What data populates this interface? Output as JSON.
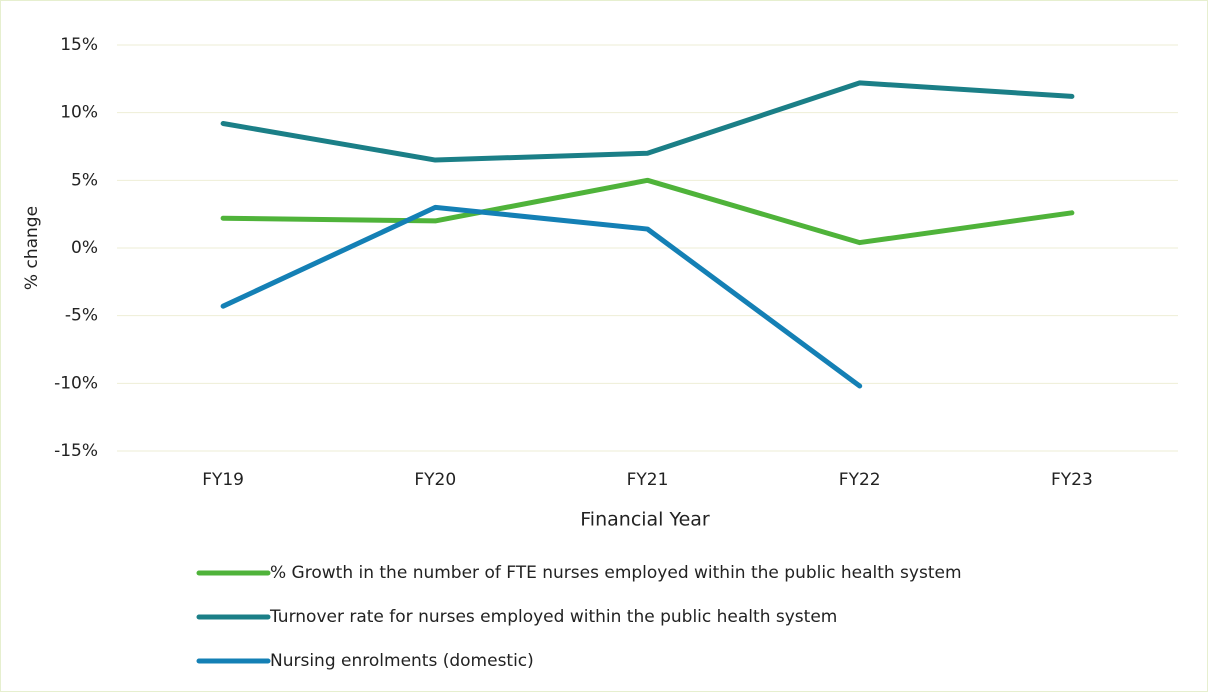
{
  "chart_data": {
    "type": "line",
    "x_label": "Financial Year",
    "y_label": "% change",
    "categories": [
      "FY19",
      "FY20",
      "FY21",
      "FY22",
      "FY23"
    ],
    "series": [
      {
        "name": "% Growth in the number of FTE nurses employed within the public health system",
        "color": "#4fb33a",
        "values": [
          2.2,
          2.0,
          5.0,
          0.4,
          2.6
        ]
      },
      {
        "name": "Turnover rate for nurses employed within the public health system",
        "color": "#1b7f87",
        "values": [
          9.2,
          6.5,
          7.0,
          12.2,
          11.2
        ]
      },
      {
        "name": "Nursing enrolments (domestic)",
        "color": "#1480b5",
        "values": [
          -4.3,
          3.0,
          1.4,
          -10.2,
          null
        ]
      }
    ],
    "ylim": [
      -15,
      15
    ],
    "yticks": [
      {
        "value": -15,
        "label": "-15%"
      },
      {
        "value": -10,
        "label": "-10%"
      },
      {
        "value": -5,
        "label": "-5%"
      },
      {
        "value": 0,
        "label": "0%"
      },
      {
        "value": 5,
        "label": "5%"
      },
      {
        "value": 10,
        "label": "10%"
      },
      {
        "value": 15,
        "label": "15%"
      }
    ],
    "grid": true,
    "legend": "bottom"
  }
}
